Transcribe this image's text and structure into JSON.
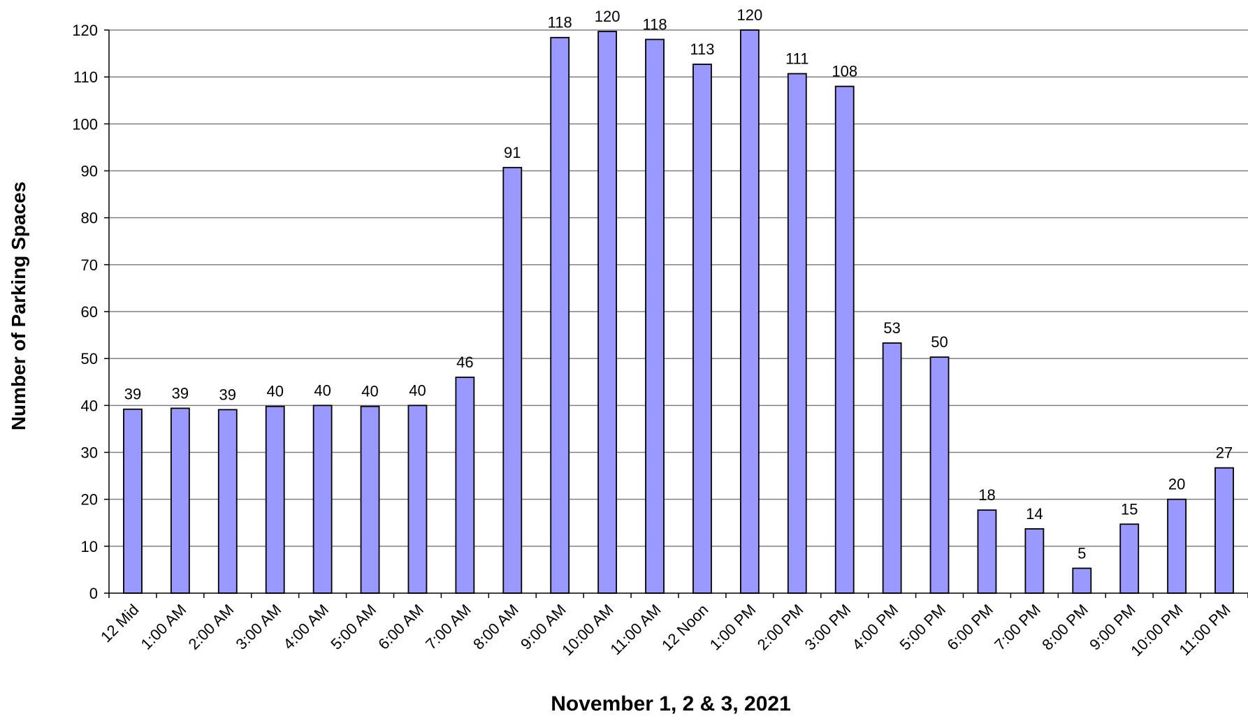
{
  "chart_data": {
    "type": "bar",
    "title": "",
    "xlabel": "November  1, 2 & 3, 2021",
    "ylabel": "Number of Parking Spaces",
    "ylim": [
      0,
      120
    ],
    "yticks": [
      0,
      10,
      20,
      30,
      40,
      50,
      60,
      70,
      80,
      90,
      100,
      110,
      120
    ],
    "grid": true,
    "legend": "none",
    "bar_color": "#9999ff",
    "categories": [
      "12 Mid",
      "1:00 AM",
      "2:00 AM",
      "3:00 AM",
      "4:00 AM",
      "5:00 AM",
      "6:00 AM",
      "7:00 AM",
      "8:00 AM",
      "9:00 AM",
      "10:00 AM",
      "11:00 AM",
      "12 Noon",
      "1:00 PM",
      "2:00 PM",
      "3:00 PM",
      "4:00 PM",
      "5:00 PM",
      "6:00 PM",
      "7:00 PM",
      "8:00 PM",
      "9:00 PM",
      "10:00 PM",
      "11:00 PM"
    ],
    "values": [
      39.2,
      39.4,
      39.1,
      39.8,
      40.0,
      39.8,
      40.0,
      46.0,
      90.7,
      118.4,
      119.7,
      118.0,
      112.7,
      120.0,
      110.7,
      108.0,
      53.3,
      50.3,
      17.7,
      13.7,
      5.3,
      14.7,
      20.0,
      26.7
    ],
    "data_labels": [
      "39",
      "39",
      "39",
      "40",
      "40",
      "40",
      "40",
      "46",
      "91",
      "118",
      "120",
      "118",
      "113",
      "120",
      "111",
      "108",
      "53",
      "50",
      "18",
      "14",
      "5",
      "15",
      "20",
      "27"
    ]
  }
}
